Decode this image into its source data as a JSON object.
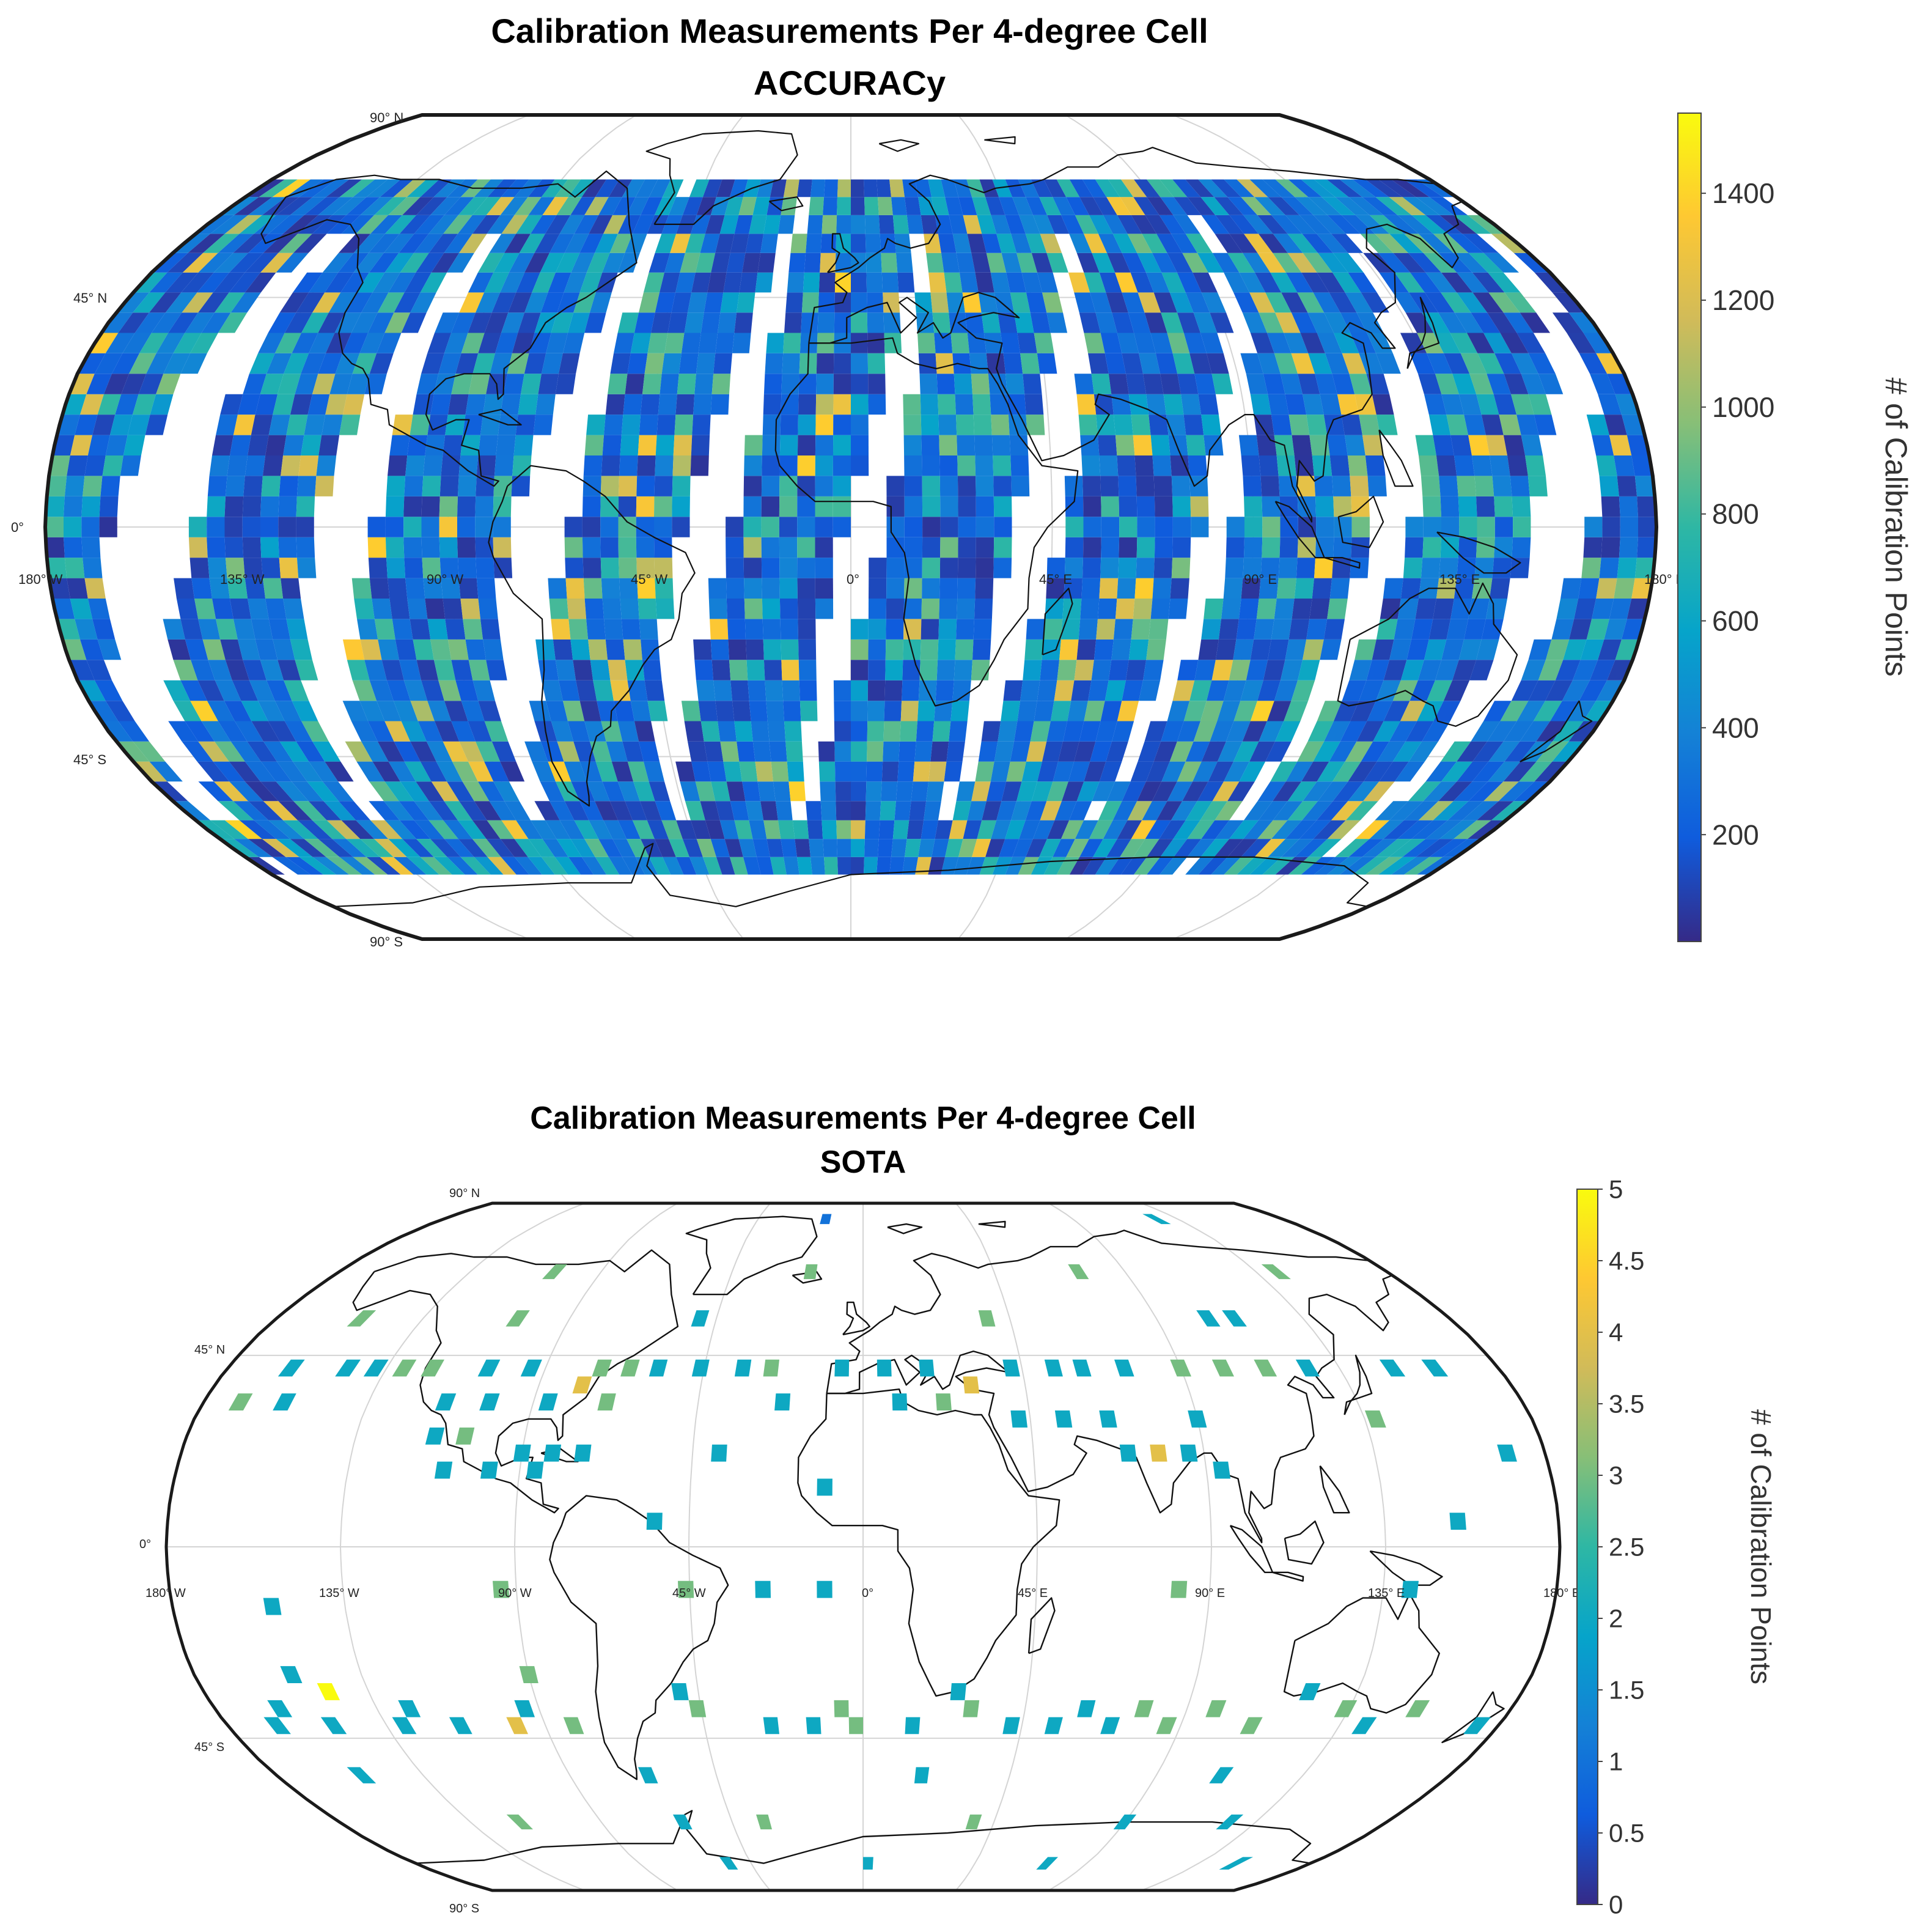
{
  "chart_data": [
    {
      "type": "heatmap",
      "projection": "robinson",
      "title": "Calibration Measurements Per 4-degree Cell",
      "subtitle": "ACCURACy",
      "cell_size_deg": 4,
      "lat_range": [
        -68,
        68
      ],
      "colorbar": {
        "label": "# of Calibration Points",
        "range": [
          0,
          1550
        ],
        "ticks": [
          200,
          400,
          600,
          800,
          1000,
          1200,
          1400
        ]
      },
      "lat_labels": [
        "90° N",
        "45° N",
        "0°",
        "45° S",
        "90° S"
      ],
      "lon_labels": [
        "180° W",
        "135° W",
        "90° W",
        "45° W",
        "0°",
        "45° E",
        "90° E",
        "135° E",
        "180° E"
      ],
      "swath_gaps_lon": [
        [
          -166,
          -146
        ],
        [
          -120,
          -106
        ],
        [
          -76,
          -62
        ],
        [
          -38,
          -26
        ],
        [
          -2,
          8
        ],
        [
          36,
          48
        ],
        [
          78,
          86
        ],
        [
          116,
          126
        ],
        [
          152,
          166
        ]
      ],
      "low_value_range": [
        40,
        420
      ],
      "medium_value_range": [
        500,
        950
      ],
      "hotspots": [
        {
          "lon": -170,
          "lat": 34,
          "value": 1350
        },
        {
          "lon": -138,
          "lat": -14,
          "value": 1500
        },
        {
          "lon": -134,
          "lat": -2,
          "value": 1350
        },
        {
          "lon": -130,
          "lat": -38,
          "value": 1300
        },
        {
          "lon": -126,
          "lat": -58,
          "value": 1500
        },
        {
          "lon": -92,
          "lat": -30,
          "value": 1300
        },
        {
          "lon": -78,
          "lat": 42,
          "value": 1250
        },
        {
          "lon": -90,
          "lat": 22,
          "value": 1250
        },
        {
          "lon": -50,
          "lat": 62,
          "value": 1300
        },
        {
          "lon": -18,
          "lat": 62,
          "value": 1300
        },
        {
          "lon": 2,
          "lat": -54,
          "value": 1250
        },
        {
          "lon": 30,
          "lat": -14,
          "value": 1350
        },
        {
          "lon": 22,
          "lat": 14,
          "value": 1300
        },
        {
          "lon": 62,
          "lat": -2,
          "value": 1300
        },
        {
          "lon": 70,
          "lat": 38,
          "value": 1250
        },
        {
          "lon": 134,
          "lat": 10,
          "value": 1350
        },
        {
          "lon": 126,
          "lat": -30,
          "value": 1300
        },
        {
          "lon": 166,
          "lat": -38,
          "value": 1300
        },
        {
          "lon": 86,
          "lat": -62,
          "value": 1300
        },
        {
          "lon": -66,
          "lat": -10,
          "value": 1300
        }
      ]
    },
    {
      "type": "heatmap",
      "projection": "robinson",
      "title": "Calibration Measurements Per 4-degree Cell",
      "subtitle": "SOTA",
      "cell_size_deg": 4,
      "colorbar": {
        "label": "# of Calibration Points",
        "range": [
          0,
          5
        ],
        "ticks": [
          "0",
          "0.5",
          "1",
          "1.5",
          "2",
          "2.5",
          "3",
          "3.5",
          "4",
          "4.5",
          "5"
        ]
      },
      "lat_labels": [
        "90° N",
        "45° N",
        "0°",
        "45° S",
        "90° S"
      ],
      "lon_labels": [
        "180° W",
        "135° W",
        "90° W",
        "45° W",
        "0°",
        "45° E",
        "90° E",
        "135° E",
        "180° E"
      ],
      "cells": [
        {
          "lon": 126,
          "lat": 82,
          "value": 2
        },
        {
          "lon": -16,
          "lat": 82,
          "value": 1
        },
        {
          "lon": -106,
          "lat": 66,
          "value": 3
        },
        {
          "lon": -18,
          "lat": 66,
          "value": 3
        },
        {
          "lon": 74,
          "lat": 66,
          "value": 3
        },
        {
          "lon": 142,
          "lat": 66,
          "value": 3
        },
        {
          "lon": -154,
          "lat": 54,
          "value": 3
        },
        {
          "lon": -106,
          "lat": 54,
          "value": 3
        },
        {
          "lon": -50,
          "lat": 54,
          "value": 2
        },
        {
          "lon": 38,
          "lat": 54,
          "value": 3
        },
        {
          "lon": 106,
          "lat": 54,
          "value": 2
        },
        {
          "lon": 114,
          "lat": 54,
          "value": 2
        },
        {
          "lon": -162,
          "lat": 42,
          "value": 2
        },
        {
          "lon": -146,
          "lat": 42,
          "value": 2
        },
        {
          "lon": -138,
          "lat": 42,
          "value": 2
        },
        {
          "lon": -130,
          "lat": 42,
          "value": 3
        },
        {
          "lon": -122,
          "lat": 42,
          "value": 3
        },
        {
          "lon": -106,
          "lat": 42,
          "value": 2
        },
        {
          "lon": -94,
          "lat": 42,
          "value": 2
        },
        {
          "lon": -74,
          "lat": 42,
          "value": 3
        },
        {
          "lon": -66,
          "lat": 42,
          "value": 3
        },
        {
          "lon": -58,
          "lat": 42,
          "value": 2
        },
        {
          "lon": -46,
          "lat": 42,
          "value": 2
        },
        {
          "lon": -34,
          "lat": 42,
          "value": 2
        },
        {
          "lon": -26,
          "lat": 42,
          "value": 3
        },
        {
          "lon": -6,
          "lat": 42,
          "value": 2
        },
        {
          "lon": 6,
          "lat": 42,
          "value": 2
        },
        {
          "lon": 18,
          "lat": 42,
          "value": 2
        },
        {
          "lon": 30,
          "lat": 38,
          "value": 4
        },
        {
          "lon": 42,
          "lat": 42,
          "value": 2
        },
        {
          "lon": 54,
          "lat": 42,
          "value": 2
        },
        {
          "lon": 62,
          "lat": 42,
          "value": 2
        },
        {
          "lon": 74,
          "lat": 42,
          "value": 2
        },
        {
          "lon": 90,
          "lat": 42,
          "value": 3
        },
        {
          "lon": 102,
          "lat": 42,
          "value": 3
        },
        {
          "lon": 114,
          "lat": 42,
          "value": 3
        },
        {
          "lon": 126,
          "lat": 42,
          "value": 2
        },
        {
          "lon": 150,
          "lat": 42,
          "value": 2
        },
        {
          "lon": 162,
          "lat": 42,
          "value": 2
        },
        {
          "lon": -170,
          "lat": 34,
          "value": 3
        },
        {
          "lon": -158,
          "lat": 34,
          "value": 2
        },
        {
          "lon": -114,
          "lat": 34,
          "value": 2
        },
        {
          "lon": -102,
          "lat": 34,
          "value": 2
        },
        {
          "lon": -86,
          "lat": 34,
          "value": 2
        },
        {
          "lon": -78,
          "lat": 38,
          "value": 4
        },
        {
          "lon": -70,
          "lat": 34,
          "value": 3
        },
        {
          "lon": -22,
          "lat": 34,
          "value": 2
        },
        {
          "lon": 10,
          "lat": 34,
          "value": 2
        },
        {
          "lon": 22,
          "lat": 34,
          "value": 3
        },
        {
          "lon": 42,
          "lat": 30,
          "value": 2
        },
        {
          "lon": 54,
          "lat": 30,
          "value": 2
        },
        {
          "lon": 66,
          "lat": 30,
          "value": 2
        },
        {
          "lon": 90,
          "lat": 30,
          "value": 2
        },
        {
          "lon": 138,
          "lat": 30,
          "value": 3
        },
        {
          "lon": -114,
          "lat": 26,
          "value": 2
        },
        {
          "lon": -106,
          "lat": 26,
          "value": 3
        },
        {
          "lon": -90,
          "lat": 22,
          "value": 2
        },
        {
          "lon": -82,
          "lat": 22,
          "value": 2
        },
        {
          "lon": -74,
          "lat": 22,
          "value": 2
        },
        {
          "lon": 70,
          "lat": 22,
          "value": 2
        },
        {
          "lon": 78,
          "lat": 22,
          "value": 4
        },
        {
          "lon": 86,
          "lat": 22,
          "value": 2
        },
        {
          "lon": 170,
          "lat": 22,
          "value": 2
        },
        {
          "lon": -110,
          "lat": 18,
          "value": 2
        },
        {
          "lon": -98,
          "lat": 18,
          "value": 2
        },
        {
          "lon": -86,
          "lat": 18,
          "value": 2
        },
        {
          "lon": -38,
          "lat": 22,
          "value": 2
        },
        {
          "lon": 94,
          "lat": 18,
          "value": 2
        },
        {
          "lon": -10,
          "lat": 14,
          "value": 2
        },
        {
          "lon": -54,
          "lat": 6,
          "value": 2
        },
        {
          "lon": 154,
          "lat": 6,
          "value": 2
        },
        {
          "lon": -94,
          "lat": -10,
          "value": 3
        },
        {
          "lon": -46,
          "lat": -10,
          "value": 3
        },
        {
          "lon": -26,
          "lat": -10,
          "value": 2
        },
        {
          "lon": -10,
          "lat": -10,
          "value": 2
        },
        {
          "lon": 82,
          "lat": -10,
          "value": 3
        },
        {
          "lon": 142,
          "lat": -10,
          "value": 2
        },
        {
          "lon": -154,
          "lat": -14,
          "value": 2
        },
        {
          "lon": -154,
          "lat": -30,
          "value": 2
        },
        {
          "lon": -146,
          "lat": -34,
          "value": 5
        },
        {
          "lon": -162,
          "lat": -38,
          "value": 2
        },
        {
          "lon": -126,
          "lat": -38,
          "value": 2
        },
        {
          "lon": -94,
          "lat": -38,
          "value": 2
        },
        {
          "lon": -90,
          "lat": -30,
          "value": 3
        },
        {
          "lon": -50,
          "lat": -34,
          "value": 2
        },
        {
          "lon": -46,
          "lat": -38,
          "value": 3
        },
        {
          "lon": -6,
          "lat": -38,
          "value": 3
        },
        {
          "lon": 26,
          "lat": -34,
          "value": 2
        },
        {
          "lon": 30,
          "lat": -38,
          "value": 3
        },
        {
          "lon": 62,
          "lat": -38,
          "value": 2
        },
        {
          "lon": 78,
          "lat": -38,
          "value": 3
        },
        {
          "lon": 98,
          "lat": -38,
          "value": 3
        },
        {
          "lon": 122,
          "lat": -34,
          "value": 2
        },
        {
          "lon": 134,
          "lat": -38,
          "value": 3
        },
        {
          "lon": 154,
          "lat": -38,
          "value": 3
        },
        {
          "lon": -166,
          "lat": -42,
          "value": 2
        },
        {
          "lon": -150,
          "lat": -42,
          "value": 2
        },
        {
          "lon": -130,
          "lat": -42,
          "value": 2
        },
        {
          "lon": -114,
          "lat": -42,
          "value": 2
        },
        {
          "lon": -98,
          "lat": -42,
          "value": 4
        },
        {
          "lon": -82,
          "lat": -42,
          "value": 3
        },
        {
          "lon": -26,
          "lat": -42,
          "value": 2
        },
        {
          "lon": -14,
          "lat": -42,
          "value": 2
        },
        {
          "lon": -2,
          "lat": -42,
          "value": 3
        },
        {
          "lon": 14,
          "lat": -42,
          "value": 2
        },
        {
          "lon": 42,
          "lat": -42,
          "value": 2
        },
        {
          "lon": 54,
          "lat": -42,
          "value": 2
        },
        {
          "lon": 70,
          "lat": -42,
          "value": 2
        },
        {
          "lon": 86,
          "lat": -42,
          "value": 3
        },
        {
          "lon": 110,
          "lat": -42,
          "value": 3
        },
        {
          "lon": 142,
          "lat": -42,
          "value": 2
        },
        {
          "lon": 174,
          "lat": -42,
          "value": 2
        },
        {
          "lon": -154,
          "lat": -54,
          "value": 2
        },
        {
          "lon": -66,
          "lat": -54,
          "value": 2
        },
        {
          "lon": 18,
          "lat": -54,
          "value": 2
        },
        {
          "lon": 110,
          "lat": -54,
          "value": 2
        },
        {
          "lon": -118,
          "lat": -66,
          "value": 3
        },
        {
          "lon": -62,
          "lat": -66,
          "value": 2
        },
        {
          "lon": -34,
          "lat": -66,
          "value": 3
        },
        {
          "lon": 38,
          "lat": -66,
          "value": 3
        },
        {
          "lon": 90,
          "lat": -66,
          "value": 2
        },
        {
          "lon": 126,
          "lat": -66,
          "value": 2
        },
        {
          "lon": -54,
          "lat": -78,
          "value": 2
        },
        {
          "lon": 2,
          "lat": -78,
          "value": 2
        },
        {
          "lon": 74,
          "lat": -78,
          "value": 2
        },
        {
          "lon": 150,
          "lat": -78,
          "value": 2
        }
      ]
    }
  ],
  "colors": {
    "parula": [
      "#352a87",
      "#0f5cdd",
      "#1481d6",
      "#06a4ca",
      "#2eb7a4",
      "#87bf77",
      "#d1bb59",
      "#fec832",
      "#f9fb0e"
    ],
    "frame": "#1a1a1a",
    "grid": "#d4d4d4",
    "land_outline": "#111111"
  }
}
